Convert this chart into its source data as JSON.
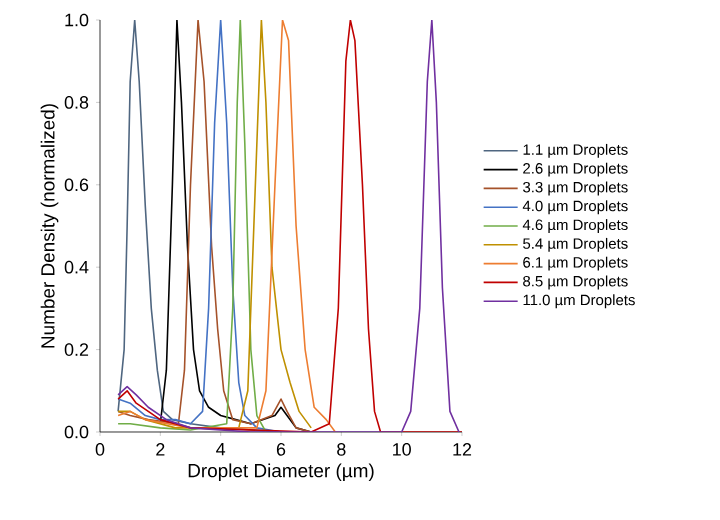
{
  "chart_data": {
    "type": "line",
    "xlabel": "Droplet Diameter (µm)",
    "ylabel": "Number Density (normalized)",
    "xlim": [
      0,
      12
    ],
    "ylim": [
      0,
      1.0
    ],
    "xticks": [
      0,
      2,
      4,
      6,
      8,
      10,
      12
    ],
    "yticks": [
      {
        "value": 0,
        "label": "0.0"
      },
      {
        "value": 0.2,
        "label": "0.2"
      },
      {
        "value": 0.4,
        "label": "0.4"
      },
      {
        "value": 0.6,
        "label": "0.6"
      },
      {
        "value": 0.8,
        "label": "0.8"
      },
      {
        "value": 1.0,
        "label": "1.0"
      }
    ],
    "legend": "right",
    "marker": "none",
    "line_style": "solid",
    "series": [
      {
        "name": "1.1 µm Droplets",
        "color": "#4f6680",
        "x": [
          0.6,
          0.8,
          0.9,
          1.0,
          1.15,
          1.3,
          1.5,
          1.7,
          1.9,
          2.1,
          2.4,
          3.0,
          4.0,
          5.0,
          6.0
        ],
        "values": [
          0.05,
          0.2,
          0.5,
          0.85,
          1.0,
          0.85,
          0.55,
          0.3,
          0.15,
          0.05,
          0.03,
          0.02,
          0.01,
          0.005,
          0.0
        ]
      },
      {
        "name": "2.6 µm Droplets",
        "color": "#000000",
        "x": [
          2.0,
          2.2,
          2.4,
          2.55,
          2.7,
          2.9,
          3.1,
          3.3,
          3.6,
          4.0,
          4.5,
          5.0,
          5.8,
          6.0,
          6.2,
          6.5,
          7.0
        ],
        "values": [
          0.02,
          0.15,
          0.6,
          1.0,
          0.8,
          0.45,
          0.2,
          0.1,
          0.06,
          0.04,
          0.03,
          0.02,
          0.04,
          0.06,
          0.04,
          0.01,
          0.0
        ]
      },
      {
        "name": "3.3 µm Droplets",
        "color": "#a5522a",
        "x": [
          0.6,
          1.0,
          1.6,
          2.6,
          2.8,
          3.0,
          3.25,
          3.45,
          3.7,
          3.9,
          4.1,
          4.4,
          5.0,
          5.7,
          6.0,
          6.2,
          6.5,
          7.0
        ],
        "values": [
          0.05,
          0.04,
          0.03,
          0.02,
          0.15,
          0.6,
          1.0,
          0.85,
          0.45,
          0.25,
          0.1,
          0.03,
          0.02,
          0.04,
          0.08,
          0.05,
          0.01,
          0.0
        ]
      },
      {
        "name": "4.0 µm Droplets",
        "color": "#4472c4",
        "x": [
          0.6,
          1.0,
          1.5,
          2.0,
          2.5,
          3.0,
          3.4,
          3.6,
          3.8,
          4.0,
          4.2,
          4.4,
          4.6,
          4.8,
          5.2,
          6.0
        ],
        "values": [
          0.08,
          0.07,
          0.04,
          0.03,
          0.03,
          0.02,
          0.05,
          0.3,
          0.75,
          1.0,
          0.75,
          0.35,
          0.12,
          0.04,
          0.01,
          0.0
        ]
      },
      {
        "name": "4.6 µm Droplets",
        "color": "#70ad47",
        "x": [
          0.6,
          1.0,
          2.0,
          3.0,
          4.2,
          4.4,
          4.55,
          4.65,
          4.8,
          5.0,
          5.2,
          5.5
        ],
        "values": [
          0.02,
          0.02,
          0.01,
          0.005,
          0.02,
          0.3,
          0.8,
          1.0,
          0.7,
          0.2,
          0.04,
          0.0
        ]
      },
      {
        "name": "5.4 µm Droplets",
        "color": "#bf9000",
        "x": [
          0.6,
          1.0,
          1.5,
          2.5,
          4.6,
          4.9,
          5.1,
          5.35,
          5.5,
          5.7,
          6.0,
          6.3,
          6.6,
          7.0
        ],
        "values": [
          0.05,
          0.05,
          0.03,
          0.01,
          0.01,
          0.1,
          0.5,
          1.0,
          0.8,
          0.4,
          0.2,
          0.12,
          0.05,
          0.01
        ]
      },
      {
        "name": "6.1 µm Droplets",
        "color": "#ed7d31",
        "x": [
          0.6,
          1.0,
          1.5,
          3.0,
          5.2,
          5.5,
          5.8,
          6.05,
          6.25,
          6.5,
          6.8,
          7.1,
          7.5,
          7.8
        ],
        "values": [
          0.04,
          0.05,
          0.03,
          0.01,
          0.01,
          0.1,
          0.6,
          1.0,
          0.95,
          0.5,
          0.2,
          0.06,
          0.03,
          0.0
        ]
      },
      {
        "name": "8.5 µm Droplets",
        "color": "#c00000",
        "x": [
          0.6,
          0.9,
          1.2,
          1.6,
          2.0,
          3.0,
          5.0,
          7.0,
          7.6,
          7.9,
          8.15,
          8.3,
          8.45,
          8.7,
          8.9,
          9.1,
          9.3,
          12.0
        ],
        "values": [
          0.08,
          0.1,
          0.07,
          0.05,
          0.03,
          0.01,
          0.005,
          0.0,
          0.02,
          0.3,
          0.9,
          1.0,
          0.95,
          0.6,
          0.25,
          0.05,
          0.0,
          0.0
        ]
      },
      {
        "name": "11.0 µm Droplets",
        "color": "#7030a0",
        "x": [
          0.6,
          0.9,
          1.2,
          1.6,
          2.2,
          3.0,
          5.0,
          10.0,
          10.3,
          10.6,
          10.85,
          11.0,
          11.15,
          11.35,
          11.6,
          11.9
        ],
        "values": [
          0.09,
          0.11,
          0.09,
          0.06,
          0.03,
          0.01,
          0.0,
          0.0,
          0.05,
          0.3,
          0.85,
          1.0,
          0.8,
          0.35,
          0.05,
          0.0
        ]
      }
    ]
  }
}
